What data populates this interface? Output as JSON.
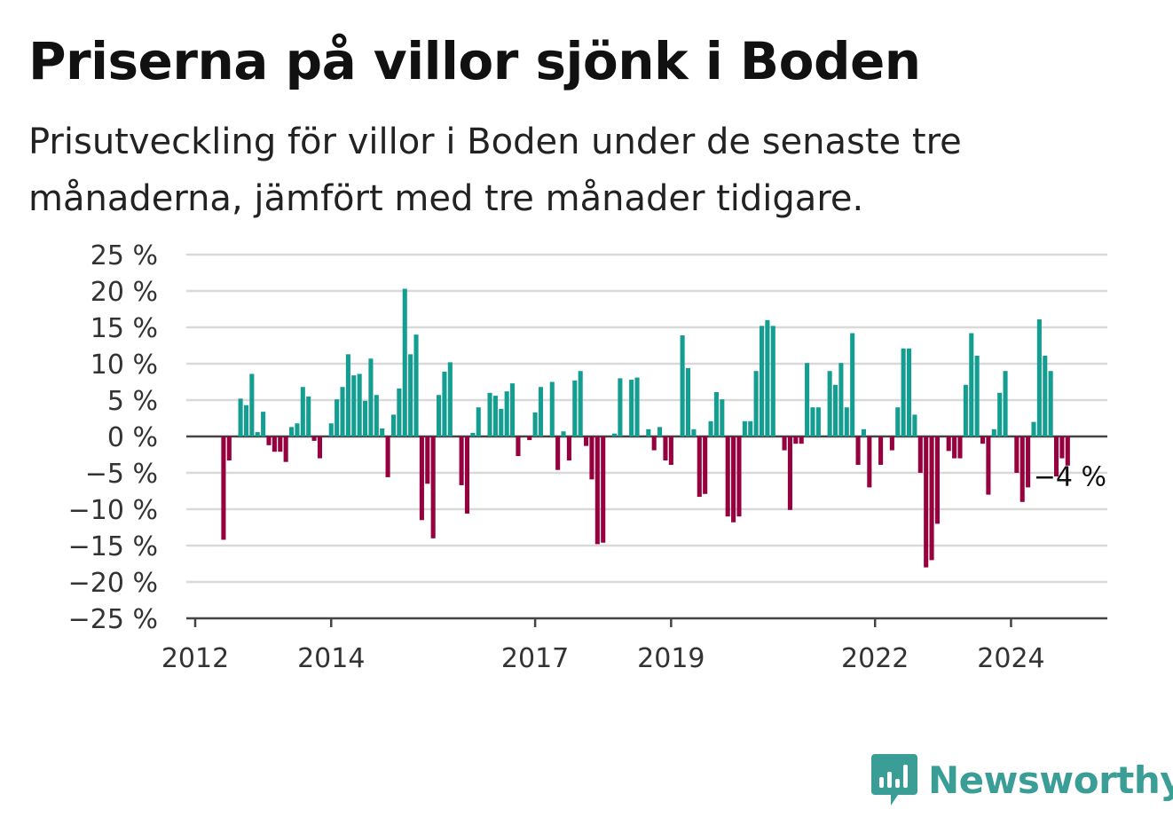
{
  "title": "Priserna på villor sjönk i Boden",
  "subtitle": "Prisutveckling för villor i Boden under de senaste tre månaderna, jämfört med tre månader tidigare.",
  "brand": {
    "name": "Newsworthy",
    "icon": "newsworthy-logo-icon",
    "color": "#3a9e96"
  },
  "colors": {
    "positive": "#149e92",
    "negative": "#96003f",
    "grid": "#d9d9d9",
    "zero_line": "#444444"
  },
  "chart_data": {
    "type": "bar",
    "title": "Priserna på villor sjönk i Boden",
    "xlabel": "",
    "ylabel": "",
    "x_start": "2012-01",
    "x_end": "2025-06",
    "ylim": [
      -25,
      25
    ],
    "y_ticks": [
      25,
      20,
      15,
      10,
      5,
      0,
      -5,
      -10,
      -15,
      -20,
      -25
    ],
    "y_tick_labels": [
      "25 %",
      "20 %",
      "15 %",
      "10 %",
      "5 %",
      "0 %",
      "−5 %",
      "−10 %",
      "−15 %",
      "−20 %",
      "−25 %"
    ],
    "x_ticks": [
      "2012",
      "2014",
      "2017",
      "2019",
      "2022",
      "2024"
    ],
    "grid": true,
    "annotation": {
      "text": "−4 %",
      "x": "2024-12",
      "y": -4
    },
    "series": [
      {
        "values": [
          {
            "x": "2012-06",
            "y": -14.2
          },
          {
            "x": "2012-07",
            "y": -3.3
          },
          {
            "x": "2012-09",
            "y": 5.2
          },
          {
            "x": "2012-10",
            "y": 4.3
          },
          {
            "x": "2012-11",
            "y": 8.6
          },
          {
            "x": "2012-12",
            "y": 0.6
          },
          {
            "x": "2013-01",
            "y": 3.4
          },
          {
            "x": "2013-02",
            "y": -1.2
          },
          {
            "x": "2013-03",
            "y": -2.1
          },
          {
            "x": "2013-04",
            "y": -2.1
          },
          {
            "x": "2013-05",
            "y": -3.5
          },
          {
            "x": "2013-06",
            "y": 1.3
          },
          {
            "x": "2013-07",
            "y": 1.8
          },
          {
            "x": "2013-08",
            "y": 6.8
          },
          {
            "x": "2013-09",
            "y": 5.5
          },
          {
            "x": "2013-10",
            "y": -0.6
          },
          {
            "x": "2013-11",
            "y": -3.0
          },
          {
            "x": "2014-01",
            "y": 1.8
          },
          {
            "x": "2014-02",
            "y": 5.1
          },
          {
            "x": "2014-03",
            "y": 6.8
          },
          {
            "x": "2014-04",
            "y": 11.3
          },
          {
            "x": "2014-05",
            "y": 8.4
          },
          {
            "x": "2014-06",
            "y": 8.6
          },
          {
            "x": "2014-07",
            "y": 4.9
          },
          {
            "x": "2014-08",
            "y": 10.7
          },
          {
            "x": "2014-09",
            "y": 5.7
          },
          {
            "x": "2014-10",
            "y": 1.1
          },
          {
            "x": "2014-11",
            "y": -5.6
          },
          {
            "x": "2014-12",
            "y": 3.0
          },
          {
            "x": "2015-01",
            "y": 6.6
          },
          {
            "x": "2015-02",
            "y": 20.3
          },
          {
            "x": "2015-03",
            "y": 11.3
          },
          {
            "x": "2015-04",
            "y": 14.0
          },
          {
            "x": "2015-05",
            "y": -11.5
          },
          {
            "x": "2015-06",
            "y": -6.5
          },
          {
            "x": "2015-07",
            "y": -14.0
          },
          {
            "x": "2015-08",
            "y": 5.7
          },
          {
            "x": "2015-09",
            "y": 8.9
          },
          {
            "x": "2015-10",
            "y": 10.2
          },
          {
            "x": "2015-12",
            "y": -6.7
          },
          {
            "x": "2016-01",
            "y": -10.6
          },
          {
            "x": "2016-02",
            "y": 0.5
          },
          {
            "x": "2016-03",
            "y": 4.0
          },
          {
            "x": "2016-05",
            "y": 6.0
          },
          {
            "x": "2016-06",
            "y": 5.6
          },
          {
            "x": "2016-07",
            "y": 3.8
          },
          {
            "x": "2016-08",
            "y": 6.2
          },
          {
            "x": "2016-09",
            "y": 7.3
          },
          {
            "x": "2016-10",
            "y": -2.7
          },
          {
            "x": "2016-12",
            "y": -0.5
          },
          {
            "x": "2017-01",
            "y": 3.3
          },
          {
            "x": "2017-02",
            "y": 6.8
          },
          {
            "x": "2017-04",
            "y": 7.5
          },
          {
            "x": "2017-05",
            "y": -4.6
          },
          {
            "x": "2017-06",
            "y": 0.7
          },
          {
            "x": "2017-07",
            "y": -3.3
          },
          {
            "x": "2017-08",
            "y": 7.7
          },
          {
            "x": "2017-09",
            "y": 9.0
          },
          {
            "x": "2017-10",
            "y": -1.3
          },
          {
            "x": "2017-11",
            "y": -5.9
          },
          {
            "x": "2017-12",
            "y": -14.8
          },
          {
            "x": "2018-01",
            "y": -14.6
          },
          {
            "x": "2018-03",
            "y": 0.4
          },
          {
            "x": "2018-04",
            "y": 8.0
          },
          {
            "x": "2018-06",
            "y": 7.8
          },
          {
            "x": "2018-07",
            "y": 8.1
          },
          {
            "x": "2018-09",
            "y": 1.0
          },
          {
            "x": "2018-10",
            "y": -1.9
          },
          {
            "x": "2018-11",
            "y": 1.3
          },
          {
            "x": "2018-12",
            "y": -3.3
          },
          {
            "x": "2019-01",
            "y": -3.9
          },
          {
            "x": "2019-03",
            "y": 13.9
          },
          {
            "x": "2019-04",
            "y": 9.4
          },
          {
            "x": "2019-05",
            "y": 1.0
          },
          {
            "x": "2019-06",
            "y": -8.3
          },
          {
            "x": "2019-07",
            "y": -7.9
          },
          {
            "x": "2019-08",
            "y": 2.1
          },
          {
            "x": "2019-09",
            "y": 6.1
          },
          {
            "x": "2019-10",
            "y": 5.1
          },
          {
            "x": "2019-11",
            "y": -11.0
          },
          {
            "x": "2019-12",
            "y": -11.8
          },
          {
            "x": "2020-01",
            "y": -11.0
          },
          {
            "x": "2020-02",
            "y": 2.1
          },
          {
            "x": "2020-03",
            "y": 2.1
          },
          {
            "x": "2020-04",
            "y": 9.0
          },
          {
            "x": "2020-05",
            "y": 15.2
          },
          {
            "x": "2020-06",
            "y": 16.0
          },
          {
            "x": "2020-07",
            "y": 15.2
          },
          {
            "x": "2020-09",
            "y": -1.9
          },
          {
            "x": "2020-10",
            "y": -10.1
          },
          {
            "x": "2020-11",
            "y": -1.0
          },
          {
            "x": "2020-12",
            "y": -1.0
          },
          {
            "x": "2021-01",
            "y": 10.1
          },
          {
            "x": "2021-02",
            "y": 4.0
          },
          {
            "x": "2021-03",
            "y": 4.0
          },
          {
            "x": "2021-05",
            "y": 9.0
          },
          {
            "x": "2021-06",
            "y": 7.1
          },
          {
            "x": "2021-07",
            "y": 10.1
          },
          {
            "x": "2021-08",
            "y": 4.0
          },
          {
            "x": "2021-09",
            "y": 14.2
          },
          {
            "x": "2021-10",
            "y": -3.9
          },
          {
            "x": "2021-11",
            "y": 1.0
          },
          {
            "x": "2021-12",
            "y": -7.0
          },
          {
            "x": "2022-02",
            "y": -3.9
          },
          {
            "x": "2022-04",
            "y": -1.9
          },
          {
            "x": "2022-05",
            "y": 4.0
          },
          {
            "x": "2022-06",
            "y": 12.1
          },
          {
            "x": "2022-07",
            "y": 12.1
          },
          {
            "x": "2022-08",
            "y": 3.0
          },
          {
            "x": "2022-09",
            "y": -5.0
          },
          {
            "x": "2022-10",
            "y": -18.0
          },
          {
            "x": "2022-11",
            "y": -17.0
          },
          {
            "x": "2022-12",
            "y": -12.0
          },
          {
            "x": "2023-02",
            "y": -2.0
          },
          {
            "x": "2023-03",
            "y": -3.0
          },
          {
            "x": "2023-04",
            "y": -3.0
          },
          {
            "x": "2023-05",
            "y": 7.1
          },
          {
            "x": "2023-06",
            "y": 14.2
          },
          {
            "x": "2023-07",
            "y": 11.1
          },
          {
            "x": "2023-08",
            "y": -1.0
          },
          {
            "x": "2023-09",
            "y": -8.0
          },
          {
            "x": "2023-10",
            "y": 1.0
          },
          {
            "x": "2023-11",
            "y": 6.0
          },
          {
            "x": "2023-12",
            "y": 9.0
          },
          {
            "x": "2024-02",
            "y": -5.0
          },
          {
            "x": "2024-03",
            "y": -9.0
          },
          {
            "x": "2024-04",
            "y": -7.0
          },
          {
            "x": "2024-05",
            "y": 2.0
          },
          {
            "x": "2024-06",
            "y": 16.1
          },
          {
            "x": "2024-07",
            "y": 11.1
          },
          {
            "x": "2024-08",
            "y": 9.0
          },
          {
            "x": "2024-09",
            "y": -5.5
          },
          {
            "x": "2024-10",
            "y": -3.0
          },
          {
            "x": "2024-11",
            "y": -4.0
          }
        ]
      }
    ]
  }
}
